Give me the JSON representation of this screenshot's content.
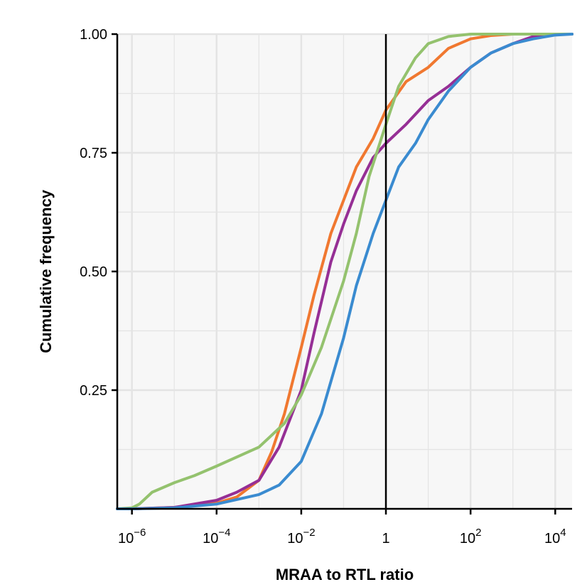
{
  "chart_data": {
    "type": "line",
    "title": "",
    "xlabel": "MRAA to RTL ratio",
    "ylabel": "Cumulative frequency",
    "x_scale": "log10",
    "xlim": [
      4.5e-07,
      25000
    ],
    "ylim": [
      0,
      1
    ],
    "x_ticks": [
      {
        "value": 1e-06,
        "base": "10",
        "exp": "−6"
      },
      {
        "value": 0.0001,
        "base": "10",
        "exp": "−4"
      },
      {
        "value": 0.01,
        "base": "10",
        "exp": "−2"
      },
      {
        "value": 1,
        "base": "1",
        "exp": ""
      },
      {
        "value": 100,
        "base": "10",
        "exp": "2"
      },
      {
        "value": 10000,
        "base": "10",
        "exp": "4"
      }
    ],
    "y_ticks": [
      {
        "value": 0.25,
        "label": "0.25"
      },
      {
        "value": 0.5,
        "label": "0.50"
      },
      {
        "value": 0.75,
        "label": "0.75"
      },
      {
        "value": 1.0,
        "label": "1.00"
      }
    ],
    "grid": true,
    "reference_line": {
      "x": 1
    },
    "background": "#f7f7f7",
    "grid_color": "#e4e4e4",
    "series": [
      {
        "color": "#f07830",
        "points": [
          [
            4.5e-07,
            0.0
          ],
          [
            1e-06,
            0.0
          ],
          [
            1e-05,
            0.003
          ],
          [
            0.0001,
            0.012
          ],
          [
            0.0003,
            0.025
          ],
          [
            0.001,
            0.06
          ],
          [
            0.002,
            0.12
          ],
          [
            0.004,
            0.2
          ],
          [
            0.01,
            0.34
          ],
          [
            0.02,
            0.45
          ],
          [
            0.05,
            0.58
          ],
          [
            0.1,
            0.65
          ],
          [
            0.2,
            0.72
          ],
          [
            0.5,
            0.78
          ],
          [
            1,
            0.84
          ],
          [
            3,
            0.9
          ],
          [
            10,
            0.93
          ],
          [
            30,
            0.97
          ],
          [
            100,
            0.99
          ],
          [
            300,
            0.997
          ],
          [
            1000,
            1.0
          ],
          [
            25000,
            1.0
          ]
        ]
      },
      {
        "color": "#962f95",
        "points": [
          [
            4.5e-07,
            0.0
          ],
          [
            1e-06,
            0.0
          ],
          [
            1e-05,
            0.003
          ],
          [
            0.0001,
            0.018
          ],
          [
            0.0003,
            0.035
          ],
          [
            0.001,
            0.06
          ],
          [
            0.003,
            0.13
          ],
          [
            0.01,
            0.25
          ],
          [
            0.02,
            0.37
          ],
          [
            0.05,
            0.52
          ],
          [
            0.1,
            0.6
          ],
          [
            0.2,
            0.67
          ],
          [
            0.5,
            0.74
          ],
          [
            1,
            0.77
          ],
          [
            3,
            0.81
          ],
          [
            10,
            0.86
          ],
          [
            30,
            0.89
          ],
          [
            100,
            0.93
          ],
          [
            300,
            0.96
          ],
          [
            1000,
            0.98
          ],
          [
            3000,
            0.995
          ],
          [
            10000,
            1.0
          ],
          [
            25000,
            1.0
          ]
        ]
      },
      {
        "color": "#94c26e",
        "points": [
          [
            4.5e-07,
            0.0
          ],
          [
            1e-06,
            0.002
          ],
          [
            1.5e-06,
            0.01
          ],
          [
            3e-06,
            0.035
          ],
          [
            1e-05,
            0.055
          ],
          [
            3e-05,
            0.07
          ],
          [
            0.0001,
            0.09
          ],
          [
            0.001,
            0.13
          ],
          [
            0.004,
            0.18
          ],
          [
            0.01,
            0.24
          ],
          [
            0.03,
            0.34
          ],
          [
            0.1,
            0.48
          ],
          [
            0.2,
            0.58
          ],
          [
            0.4,
            0.7
          ],
          [
            1,
            0.81
          ],
          [
            2,
            0.89
          ],
          [
            5,
            0.95
          ],
          [
            10,
            0.98
          ],
          [
            30,
            0.995
          ],
          [
            100,
            1.0
          ],
          [
            25000,
            1.0
          ]
        ]
      },
      {
        "color": "#3a8bd0",
        "points": [
          [
            4.5e-07,
            0.0
          ],
          [
            1e-06,
            0.0
          ],
          [
            1e-05,
            0.002
          ],
          [
            0.0001,
            0.01
          ],
          [
            0.001,
            0.03
          ],
          [
            0.003,
            0.05
          ],
          [
            0.01,
            0.1
          ],
          [
            0.03,
            0.2
          ],
          [
            0.1,
            0.36
          ],
          [
            0.2,
            0.47
          ],
          [
            0.5,
            0.58
          ],
          [
            1,
            0.65
          ],
          [
            2,
            0.72
          ],
          [
            5,
            0.77
          ],
          [
            10,
            0.82
          ],
          [
            30,
            0.88
          ],
          [
            100,
            0.93
          ],
          [
            300,
            0.96
          ],
          [
            1000,
            0.98
          ],
          [
            3000,
            0.99
          ],
          [
            10000,
            0.998
          ],
          [
            25000,
            1.0
          ]
        ]
      }
    ]
  }
}
